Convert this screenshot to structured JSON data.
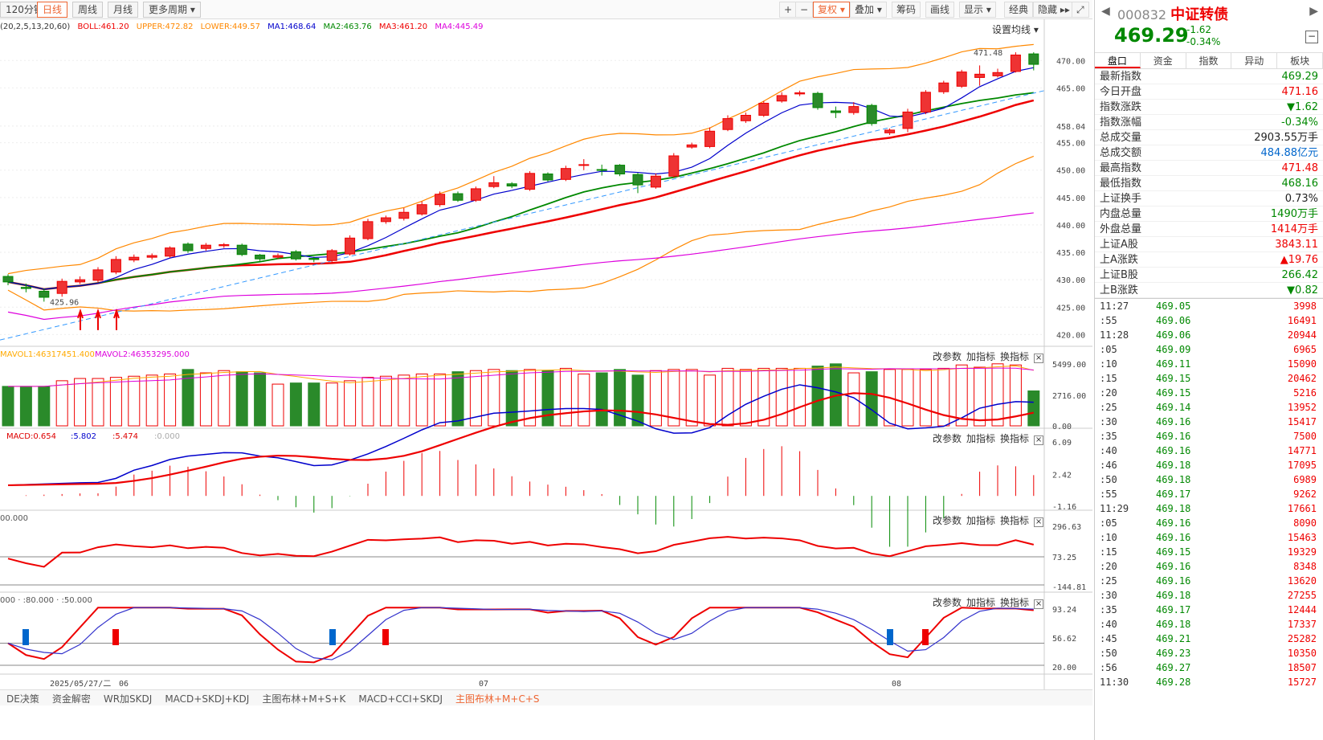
{
  "toolbar": {
    "periods": [
      "120分钟",
      "日线",
      "周线",
      "月线",
      "更多周期 ▾"
    ],
    "active": "日线",
    "right": [
      "+",
      "−",
      "复权 ▾",
      "叠加 ▾",
      "筹码",
      "画线",
      "显示 ▾",
      "经典",
      "隐藏 ▸▸"
    ]
  },
  "info": {
    "boll": "BOLL:461.20",
    "upper": "UPPER:472.82",
    "lower": "LOWER:449.57",
    "ma1": "MA1:468.64",
    "ma2": "MA2:463.76",
    "ma3": "MA3:461.20",
    "ma4": "MA4:445.49",
    "params": "(20,2,5,13,20,60)",
    "settings": "设置均线 ▾"
  },
  "price_axis": [
    "470.00",
    "465.00",
    "458.04",
    "455.00",
    "450.00",
    "445.00",
    "440.00",
    "435.00",
    "430.00",
    "425.00",
    "420.00"
  ],
  "annot": {
    "high": "471.48",
    "low": "425.96"
  },
  "vol": {
    "label1": "MAVOL1:46317451.400",
    "label2": "MAVOL2:46353295.000",
    "axis": [
      "5499.00",
      "2716.00",
      "0.00"
    ]
  },
  "macd": {
    "label": "MACD:0.654",
    "dif": ":5.802",
    "dea": ":5.474",
    "zero": ":0.000",
    "axis": [
      "6.09",
      "2.42",
      "-1.16"
    ]
  },
  "cci": {
    "label": "00.000",
    "axis": [
      "296.63",
      "73.25",
      "-144.81"
    ]
  },
  "kdj": {
    "label": "000 · :80.000 · :50.000",
    "axis": [
      "93.24",
      "56.62",
      "20.00"
    ]
  },
  "paneltools": [
    "改参数",
    "加指标",
    "换指标"
  ],
  "dates": {
    "d1": "2025/05/27/二",
    "m1": "06",
    "m2": "07",
    "m3": "08"
  },
  "bottomtabs": [
    "DE决策",
    "资金解密",
    "WR加SKDJ",
    "MACD+SKDJ+KDJ",
    "主图布林+M+S+K",
    "MACD+CCI+SKDJ",
    "主图布林+M+C+S"
  ],
  "bottom_active": "主图布林+M+C+S",
  "stock": {
    "code": "000832",
    "name": "中证转债",
    "price": "469.29",
    "change": "-1.62",
    "pct": "-0.34%"
  },
  "rtabs": [
    "盘口",
    "资金",
    "指数",
    "异动",
    "板块"
  ],
  "quote": [
    {
      "k": "最新指数",
      "v": "469.29",
      "c": "green"
    },
    {
      "k": "今日开盘",
      "v": "471.16",
      "c": "red"
    },
    {
      "k": "指数涨跌",
      "v": "▼1.62",
      "c": "green"
    },
    {
      "k": "指数涨幅",
      "v": "-0.34%",
      "c": "green"
    },
    {
      "k": "总成交量",
      "v": "2903.55万手",
      "c": "black"
    },
    {
      "k": "总成交额",
      "v": "484.88亿元",
      "c": "blue"
    },
    {
      "k": "最高指数",
      "v": "471.48",
      "c": "red"
    },
    {
      "k": "最低指数",
      "v": "468.16",
      "c": "green"
    },
    {
      "k": "上证换手",
      "v": "0.73%",
      "c": "black"
    },
    {
      "k": "内盘总量",
      "v": "1490万手",
      "c": "green"
    },
    {
      "k": "外盘总量",
      "v": "1414万手",
      "c": "red"
    },
    {
      "k": "上证A股",
      "v": "3843.11",
      "c": "red"
    },
    {
      "k": "上A涨跌",
      "v": "▲19.76",
      "c": "red"
    },
    {
      "k": "上证B股",
      "v": "266.42",
      "c": "green"
    },
    {
      "k": "上B涨跌",
      "v": "▼0.82",
      "c": "green"
    }
  ],
  "ticks": [
    [
      "11:27",
      "469.05",
      "3998"
    ],
    [
      ":55",
      "469.06",
      "16491"
    ],
    [
      "11:28",
      "469.06",
      "20944"
    ],
    [
      ":05",
      "469.09",
      "6965"
    ],
    [
      ":10",
      "469.11",
      "15090"
    ],
    [
      ":15",
      "469.15",
      "20462"
    ],
    [
      ":20",
      "469.15",
      "5216"
    ],
    [
      ":25",
      "469.14",
      "13952"
    ],
    [
      ":30",
      "469.16",
      "15417"
    ],
    [
      ":35",
      "469.16",
      "7500"
    ],
    [
      ":40",
      "469.16",
      "14771"
    ],
    [
      ":46",
      "469.18",
      "17095"
    ],
    [
      ":50",
      "469.18",
      "6989"
    ],
    [
      ":55",
      "469.17",
      "9262"
    ],
    [
      "11:29",
      "469.18",
      "17661"
    ],
    [
      ":05",
      "469.16",
      "8090"
    ],
    [
      ":10",
      "469.16",
      "15463"
    ],
    [
      ":15",
      "469.15",
      "19329"
    ],
    [
      ":20",
      "469.16",
      "8348"
    ],
    [
      ":25",
      "469.16",
      "13620"
    ],
    [
      ":30",
      "469.18",
      "27255"
    ],
    [
      ":35",
      "469.17",
      "12444"
    ],
    [
      ":40",
      "469.18",
      "17337"
    ],
    [
      ":45",
      "469.21",
      "25282"
    ],
    [
      ":50",
      "469.23",
      "10350"
    ],
    [
      ":56",
      "469.27",
      "18507"
    ],
    [
      "11:30",
      "469.28",
      "15727"
    ]
  ],
  "chart_data": {
    "type": "candlestick",
    "ylim": [
      418,
      474
    ],
    "candles": [
      [
        430.6,
        429.6,
        431.0,
        429.0
      ],
      [
        428.6,
        428.4,
        429.3,
        427.7
      ],
      [
        427.9,
        426.8,
        428.4,
        426.0
      ],
      [
        427.5,
        429.7,
        430.2,
        426.9
      ],
      [
        429.6,
        430.0,
        430.6,
        429.2
      ],
      [
        429.9,
        431.8,
        432.3,
        429.5
      ],
      [
        431.4,
        433.7,
        434.3,
        431.0
      ],
      [
        433.6,
        434.1,
        434.6,
        433.2
      ],
      [
        434.1,
        434.4,
        434.8,
        433.7
      ],
      [
        434.3,
        435.8,
        436.1,
        434.0
      ],
      [
        436.5,
        435.3,
        436.8,
        434.9
      ],
      [
        435.7,
        436.3,
        436.7,
        435.3
      ],
      [
        436.2,
        436.4,
        436.7,
        435.8
      ],
      [
        436.3,
        434.6,
        436.6,
        434.3
      ],
      [
        434.5,
        433.8,
        434.7,
        433.4
      ],
      [
        434.1,
        434.4,
        434.8,
        433.8
      ],
      [
        435.1,
        433.8,
        435.4,
        433.5
      ],
      [
        433.9,
        433.7,
        434.2,
        433.2
      ],
      [
        433.5,
        435.3,
        435.6,
        433.0
      ],
      [
        434.7,
        437.6,
        438.1,
        434.4
      ],
      [
        437.5,
        440.6,
        441.1,
        437.2
      ],
      [
        440.6,
        441.3,
        441.7,
        440.2
      ],
      [
        441.2,
        442.3,
        443.1,
        440.8
      ],
      [
        442.0,
        443.7,
        444.3,
        441.7
      ],
      [
        443.7,
        445.6,
        446.1,
        443.3
      ],
      [
        445.7,
        444.5,
        446.1,
        444.2
      ],
      [
        444.5,
        446.6,
        447.0,
        444.2
      ],
      [
        447.0,
        447.7,
        448.9,
        446.7
      ],
      [
        447.5,
        447.1,
        447.8,
        446.7
      ],
      [
        446.5,
        449.4,
        449.8,
        446.2
      ],
      [
        449.3,
        448.2,
        449.6,
        447.9
      ],
      [
        448.3,
        450.3,
        450.8,
        448.0
      ],
      [
        451.0,
        451.0,
        452.0,
        450.0
      ],
      [
        450.1,
        450.0,
        451.0,
        449.0
      ],
      [
        450.9,
        449.3,
        451.1,
        448.9
      ],
      [
        449.2,
        447.3,
        449.5,
        445.8
      ],
      [
        446.9,
        448.9,
        449.4,
        446.6
      ],
      [
        448.9,
        452.6,
        453.1,
        448.6
      ],
      [
        454.2,
        454.6,
        455.0,
        453.9
      ],
      [
        454.3,
        457.1,
        457.8,
        454.0
      ],
      [
        457.4,
        459.4,
        460.0,
        457.1
      ],
      [
        459.0,
        460.0,
        460.5,
        458.6
      ],
      [
        460.0,
        462.2,
        462.6,
        459.7
      ],
      [
        462.6,
        463.6,
        464.2,
        462.3
      ],
      [
        463.9,
        464.1,
        464.5,
        463.5
      ],
      [
        464.0,
        461.4,
        464.3,
        461.0
      ],
      [
        460.8,
        460.5,
        461.6,
        459.5
      ],
      [
        460.5,
        461.6,
        462.4,
        460.1
      ],
      [
        461.8,
        458.5,
        462.1,
        458.1
      ],
      [
        456.8,
        457.3,
        457.6,
        456.4
      ],
      [
        457.6,
        460.6,
        461.2,
        456.9
      ],
      [
        460.6,
        464.2,
        464.6,
        460.2
      ],
      [
        464.3,
        465.9,
        466.3,
        463.9
      ],
      [
        465.3,
        467.9,
        468.3,
        465.0
      ],
      [
        466.9,
        467.5,
        469.1,
        465.4
      ],
      [
        467.2,
        467.8,
        468.5,
        466.9
      ],
      [
        468.0,
        471.0,
        471.5,
        467.8
      ],
      [
        471.2,
        469.3,
        471.5,
        468.2
      ]
    ],
    "volumes": [
      3500,
      3500,
      3500,
      4000,
      4200,
      4200,
      4300,
      4400,
      4500,
      4600,
      5000,
      4700,
      4900,
      4800,
      4700,
      3700,
      3800,
      3800,
      3800,
      4000,
      4300,
      4400,
      4500,
      4600,
      4600,
      4800,
      4900,
      5000,
      4900,
      5000,
      4900,
      5100,
      4600,
      4700,
      5000,
      4500,
      4900,
      5000,
      5000,
      4500,
      5100,
      5000,
      5100,
      5100,
      5100,
      5300,
      5500,
      4700,
      4800,
      5000,
      5000,
      5000,
      5100,
      5400,
      5200,
      5500,
      5400,
      3100
    ]
  }
}
